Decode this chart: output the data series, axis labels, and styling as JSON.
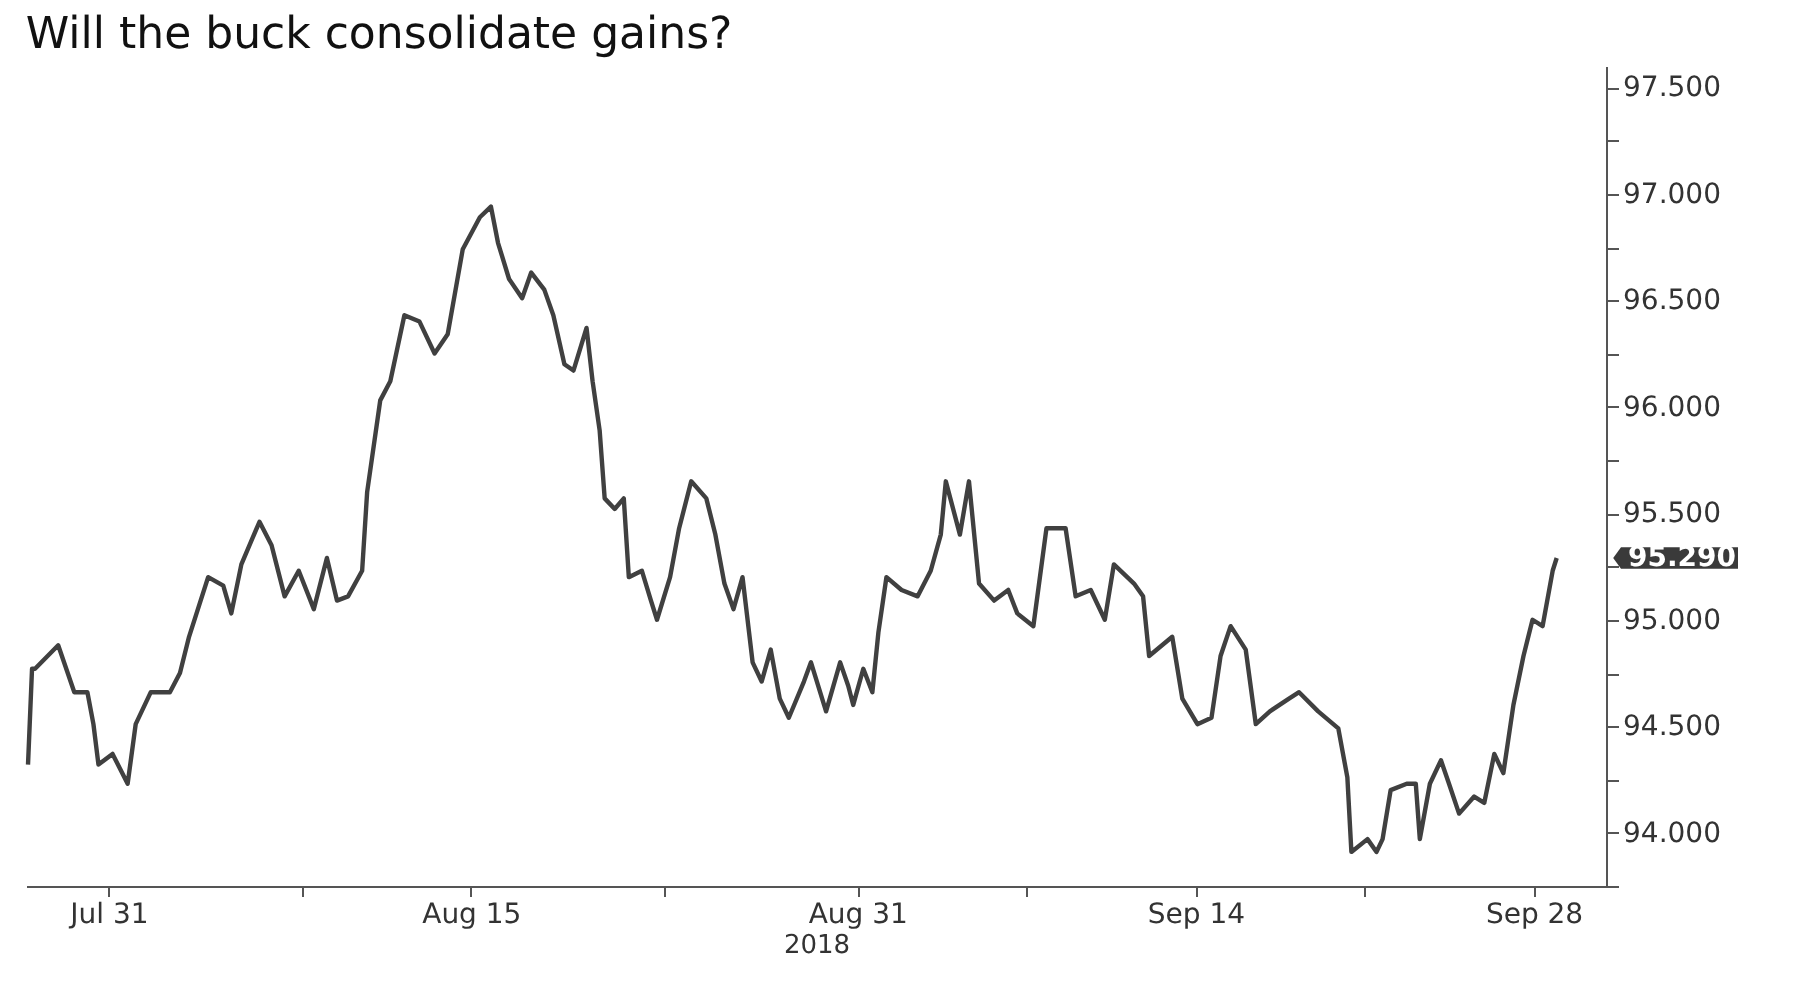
{
  "chart_data": {
    "type": "line",
    "title": "Will the buck consolidate gains?",
    "xlabel": "2018",
    "x": [
      "2018-07-27T16:00",
      "2018-07-27T20:00",
      "2018-07-27T23:00",
      "2018-07-28T22:00",
      "2018-07-29T14:00",
      "2018-07-30T03:00",
      "2018-07-30T09:00",
      "2018-07-30T14:00",
      "2018-07-31T04:00",
      "2018-07-31T19:00",
      "2018-08-01T03:00",
      "2018-08-01T18:00",
      "2018-08-02T13:00",
      "2018-08-02T23:00",
      "2018-08-03T08:00",
      "2018-08-04T03:00",
      "2018-08-04T18:00",
      "2018-08-05T02:00",
      "2018-08-05T12:00",
      "2018-08-06T06:00",
      "2018-08-06T18:00",
      "2018-08-07T07:00",
      "2018-08-07T21:00",
      "2018-08-08T12:00",
      "2018-08-09T01:00",
      "2018-08-09T11:00",
      "2018-08-09T22:00",
      "2018-08-10T12:00",
      "2018-08-10T17:00",
      "2018-08-11T06:00",
      "2018-08-11T16:00",
      "2018-08-12T06:00",
      "2018-08-12T21:00",
      "2018-08-13T12:00",
      "2018-08-14T01:00",
      "2018-08-14T16:00",
      "2018-08-15T09:00",
      "2018-08-15T20:00",
      "2018-08-16T03:00",
      "2018-08-16T14:00",
      "2018-08-17T03:00",
      "2018-08-17T12:00",
      "2018-08-18T01:00",
      "2018-08-18T10:00",
      "2018-08-18T21:00",
      "2018-08-19T06:00",
      "2018-08-19T19:00",
      "2018-08-20T01:00",
      "2018-08-20T08:00",
      "2018-08-20T13:00",
      "2018-08-20T23:00",
      "2018-08-21T08:00",
      "2018-08-21T13:00",
      "2018-08-22T02:00",
      "2018-08-22T11:00",
      "2018-08-22T17:00",
      "2018-08-23T06:00",
      "2018-08-23T15:00",
      "2018-08-24T03:00",
      "2018-08-24T18:00",
      "2018-08-25T03:00",
      "2018-08-25T12:00",
      "2018-08-25T21:00",
      "2018-08-26T06:00",
      "2018-08-26T16:00",
      "2018-08-27T01:00",
      "2018-08-27T10:00",
      "2018-08-27T19:00",
      "2018-08-28T04:00",
      "2018-08-28T19:00",
      "2018-08-29T02:00",
      "2018-08-29T17:00",
      "2018-08-30T07:00",
      "2018-08-30T15:00",
      "2018-08-30T20:00",
      "2018-08-31T06:00",
      "2018-08-31T15:00",
      "2018-08-31T21:00",
      "2018-09-01T05:00",
      "2018-09-01T20:00",
      "2018-09-02T12:00",
      "2018-09-03T01:00",
      "2018-09-03T11:00",
      "2018-09-03T16:00",
      "2018-09-04T06:00",
      "2018-09-04T15:00",
      "2018-09-05T01:00",
      "2018-09-05T16:00",
      "2018-09-06T06:00",
      "2018-09-06T15:00",
      "2018-09-07T07:00",
      "2018-09-07T20:00",
      "2018-09-08T15:00",
      "2018-09-09T01:00",
      "2018-09-09T16:00",
      "2018-09-10T06:00",
      "2018-09-10T15:00",
      "2018-09-11T11:00",
      "2018-09-11T20:00",
      "2018-09-12T02:00",
      "2018-09-13T01:00",
      "2018-09-13T11:00",
      "2018-09-14T02:00",
      "2018-09-14T16:00",
      "2018-09-15T01:00",
      "2018-09-15T11:00",
      "2018-09-16T02:00",
      "2018-09-16T12:00",
      "2018-09-17T02:00",
      "2018-09-17T21:00",
      "2018-09-18T07:00",
      "2018-09-19T02:00",
      "2018-09-19T22:00",
      "2018-09-20T07:00",
      "2018-09-20T11:00",
      "2018-09-21T03:00",
      "2018-09-21T12:00",
      "2018-09-21T18:00",
      "2018-09-22T02:00",
      "2018-09-22T18:00",
      "2018-09-23T03:00",
      "2018-09-23T07:00",
      "2018-09-23T17:00",
      "2018-09-24T04:00",
      "2018-09-24T12:00",
      "2018-09-24T22:00",
      "2018-09-25T13:00",
      "2018-09-25T23:00",
      "2018-09-26T09:00",
      "2018-09-26T18:00",
      "2018-09-27T04:00",
      "2018-09-27T14:00",
      "2018-09-27T23:00",
      "2018-09-28T09:00",
      "2018-09-28T19:00",
      "2018-09-28T23:00"
    ],
    "series": [
      {
        "color": "#404040",
        "values": [
          94.32,
          94.77,
          94.77,
          94.88,
          94.66,
          94.66,
          94.51,
          94.32,
          94.37,
          94.23,
          94.51,
          94.66,
          94.66,
          94.75,
          94.92,
          95.2,
          95.16,
          95.03,
          95.26,
          95.46,
          95.35,
          95.11,
          95.23,
          95.05,
          95.29,
          95.09,
          95.11,
          95.23,
          95.6,
          96.03,
          96.12,
          96.43,
          96.4,
          96.25,
          96.34,
          96.74,
          96.89,
          96.94,
          96.77,
          96.6,
          96.51,
          96.63,
          96.55,
          96.43,
          96.2,
          96.17,
          96.37,
          96.12,
          95.89,
          95.57,
          95.52,
          95.57,
          95.2,
          95.23,
          95.09,
          95.0,
          95.2,
          95.43,
          95.65,
          95.57,
          95.4,
          95.17,
          95.05,
          95.2,
          94.8,
          94.71,
          94.86,
          94.63,
          94.54,
          94.71,
          94.8,
          94.57,
          94.8,
          94.69,
          94.6,
          94.77,
          94.66,
          94.94,
          95.2,
          95.14,
          95.11,
          95.23,
          95.4,
          95.65,
          95.4,
          95.65,
          95.17,
          95.09,
          95.14,
          95.03,
          94.97,
          95.43,
          95.43,
          95.11,
          95.14,
          95.0,
          95.26,
          95.17,
          95.11,
          94.83,
          94.92,
          94.63,
          94.51,
          94.54,
          94.83,
          94.97,
          94.86,
          94.51,
          94.57,
          94.63,
          94.66,
          94.57,
          94.49,
          94.26,
          93.91,
          93.97,
          93.91,
          93.97,
          94.2,
          94.23,
          94.23,
          93.97,
          94.23,
          94.34,
          94.23,
          94.09,
          94.17,
          94.14,
          94.37,
          94.28,
          94.6,
          94.83,
          95.0,
          94.97,
          95.23,
          95.29
        ]
      }
    ],
    "xlim": [
      "2018-07-27T14:00",
      "2018-10-01T00:00"
    ],
    "xticks": [
      {
        "value": "2018-07-31",
        "label": "Jul 31"
      },
      {
        "value": "2018-08-08",
        "label": null
      },
      {
        "value": "2018-08-15",
        "label": "Aug 15"
      },
      {
        "value": "2018-08-23",
        "label": null
      },
      {
        "value": "2018-08-31",
        "label": "Aug 31"
      },
      {
        "value": "2018-09-07",
        "label": null
      },
      {
        "value": "2018-09-14",
        "label": "Sep 14"
      },
      {
        "value": "2018-09-21",
        "label": null
      },
      {
        "value": "2018-09-28",
        "label": "Sep 28"
      }
    ],
    "ylim": [
      93.75,
      97.6
    ],
    "yticks": [
      {
        "value": 93.75,
        "label": null
      },
      {
        "value": 94.0,
        "label": "94.000"
      },
      {
        "value": 94.25,
        "label": null
      },
      {
        "value": 94.5,
        "label": "94.500"
      },
      {
        "value": 94.75,
        "label": null
      },
      {
        "value": 95.0,
        "label": "95.000"
      },
      {
        "value": 95.25,
        "label": null
      },
      {
        "value": 95.5,
        "label": "95.500"
      },
      {
        "value": 95.75,
        "label": null
      },
      {
        "value": 96.0,
        "label": "96.000"
      },
      {
        "value": 96.25,
        "label": null
      },
      {
        "value": 96.5,
        "label": "96.500"
      },
      {
        "value": 96.75,
        "label": null
      },
      {
        "value": 97.0,
        "label": "97.000"
      },
      {
        "value": 97.25,
        "label": null
      },
      {
        "value": 97.5,
        "label": "97.500"
      }
    ],
    "annotations": [
      "95.290"
    ],
    "grid": false,
    "marker": "none",
    "line_style": "solid"
  }
}
